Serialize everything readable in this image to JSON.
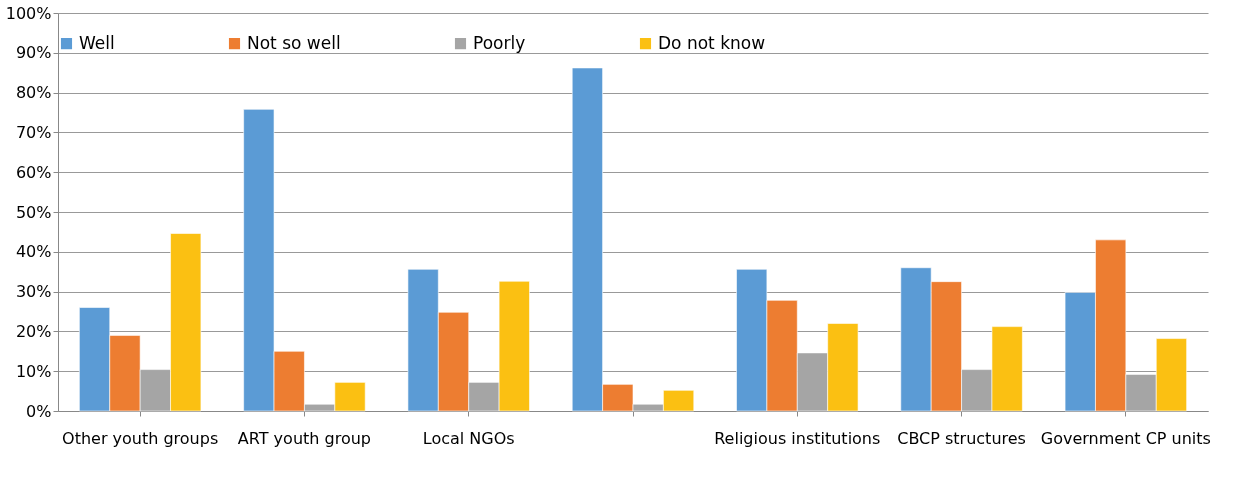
{
  "chart_data": {
    "type": "bar",
    "categories": [
      "Other youth groups",
      "ART youth group",
      "Local NGOs",
      null,
      "Religious institutions",
      "CBCP structures",
      "Government CP units"
    ],
    "series": [
      {
        "name": "Well",
        "color": "#5b9bd5",
        "values": [
          26,
          75.8,
          35.6,
          86.2,
          35.6,
          36,
          29.8
        ]
      },
      {
        "name": "Not so well",
        "color": "#ed7d31",
        "values": [
          19,
          15,
          24.8,
          6.7,
          27.8,
          32.5,
          43
        ]
      },
      {
        "name": "Poorly",
        "color": "#a5a5a5",
        "values": [
          10.4,
          1.7,
          7.2,
          1.7,
          14.6,
          10.4,
          9.2
        ]
      },
      {
        "name": "Do not know",
        "color": "#fbc012",
        "values": [
          44.6,
          7.2,
          32.6,
          5.2,
          22,
          21.2,
          18.2
        ]
      }
    ],
    "ylim": [
      0,
      100
    ],
    "yticks": [
      {
        "value": 0,
        "label": "0%"
      },
      {
        "value": 10,
        "label": "10%"
      },
      {
        "value": 20,
        "label": "20%"
      },
      {
        "value": 30,
        "label": "30%"
      },
      {
        "value": 40,
        "label": "40%"
      },
      {
        "value": 50,
        "label": "50%"
      },
      {
        "value": 60,
        "label": "60%"
      },
      {
        "value": 70,
        "label": "70%"
      },
      {
        "value": 80,
        "label": "80%"
      },
      {
        "value": 90,
        "label": "90%"
      },
      {
        "value": 100,
        "label": "100%"
      }
    ],
    "grid": "y",
    "legend": "top"
  }
}
